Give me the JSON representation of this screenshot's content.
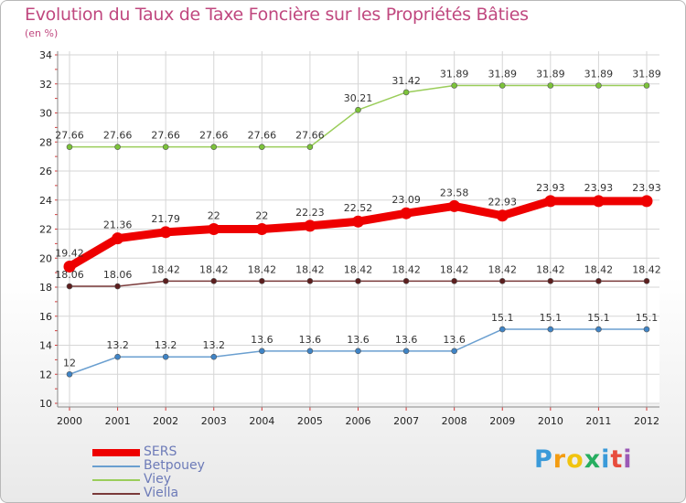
{
  "chart_data": {
    "type": "line",
    "title": "Evolution du Taux de Taxe Foncière sur les Propriétés Bâties",
    "ylabel": "(en %)",
    "xlabel": "",
    "categories": [
      "2000",
      "2001",
      "2002",
      "2003",
      "2004",
      "2005",
      "2006",
      "2007",
      "2008",
      "2009",
      "2010",
      "2011",
      "2012"
    ],
    "ylim": [
      10,
      34
    ],
    "yticks": [
      10,
      12,
      14,
      16,
      18,
      20,
      22,
      24,
      26,
      28,
      30,
      32,
      34
    ],
    "grid": true,
    "legend_position": "bottom-left",
    "series": [
      {
        "name": "Viey",
        "color": "#9acd5a",
        "marker": "#7cc33a",
        "weight": "thin",
        "values": [
          27.66,
          27.66,
          27.66,
          27.66,
          27.66,
          27.66,
          30.21,
          31.42,
          31.89,
          31.89,
          31.89,
          31.89,
          31.89
        ],
        "labels": [
          "27.66",
          "27.66",
          "27.66",
          "27.66",
          "27.66",
          "27.66",
          "30.21",
          "31.42",
          "31.89",
          "31.89",
          "31.89",
          "31.89",
          "31.89"
        ]
      },
      {
        "name": "Viella",
        "color": "#7a3a3a",
        "marker": "#5c1e1e",
        "weight": "thin",
        "values": [
          18.06,
          18.06,
          18.42,
          18.42,
          18.42,
          18.42,
          18.42,
          18.42,
          18.42,
          18.42,
          18.42,
          18.42,
          18.42
        ],
        "labels": [
          "18.06",
          "18.06",
          "18.42",
          "18.42",
          "18.42",
          "18.42",
          "18.42",
          "18.42",
          "18.42",
          "18.42",
          "18.42",
          "18.42",
          "18.42"
        ]
      },
      {
        "name": "Betpouey",
        "color": "#6a9fd0",
        "marker": "#3f84c6",
        "weight": "thin",
        "values": [
          12,
          13.2,
          13.2,
          13.2,
          13.6,
          13.6,
          13.6,
          13.6,
          13.6,
          15.1,
          15.1,
          15.1,
          15.1
        ],
        "labels": [
          "12",
          "13.2",
          "13.2",
          "13.2",
          "13.6",
          "13.6",
          "13.6",
          "13.6",
          "13.6",
          "15.1",
          "15.1",
          "15.1",
          "15.1"
        ]
      },
      {
        "name": "SERS",
        "color": "#ee0000",
        "marker": "#ee0000",
        "weight": "thick",
        "values": [
          19.42,
          21.36,
          21.79,
          22,
          22,
          22.23,
          22.52,
          23.09,
          23.58,
          22.93,
          23.93,
          23.93,
          23.93
        ],
        "labels": [
          "19.42",
          "21.36",
          "21.79",
          "22",
          "22",
          "22.23",
          "22.52",
          "23.09",
          "23.58",
          "22.93",
          "23.93",
          "23.93",
          "23.93"
        ]
      }
    ]
  },
  "legend": [
    {
      "name": "SERS",
      "color": "#ee0000",
      "weight": "thick"
    },
    {
      "name": "Betpouey",
      "color": "#6a9fd0",
      "weight": "thin"
    },
    {
      "name": "Viey",
      "color": "#9acd5a",
      "weight": "thin"
    },
    {
      "name": "Viella",
      "color": "#7a3a3a",
      "weight": "thin"
    }
  ],
  "logo": {
    "text": "Proxiti",
    "letters": [
      "P",
      "r",
      "o",
      "x",
      "i",
      "t",
      "i"
    ],
    "colors": [
      "#3a9ad9",
      "#f39c12",
      "#f1c40f",
      "#27ae60",
      "#3a9ad9",
      "#e74c3c",
      "#9b59b6"
    ]
  }
}
